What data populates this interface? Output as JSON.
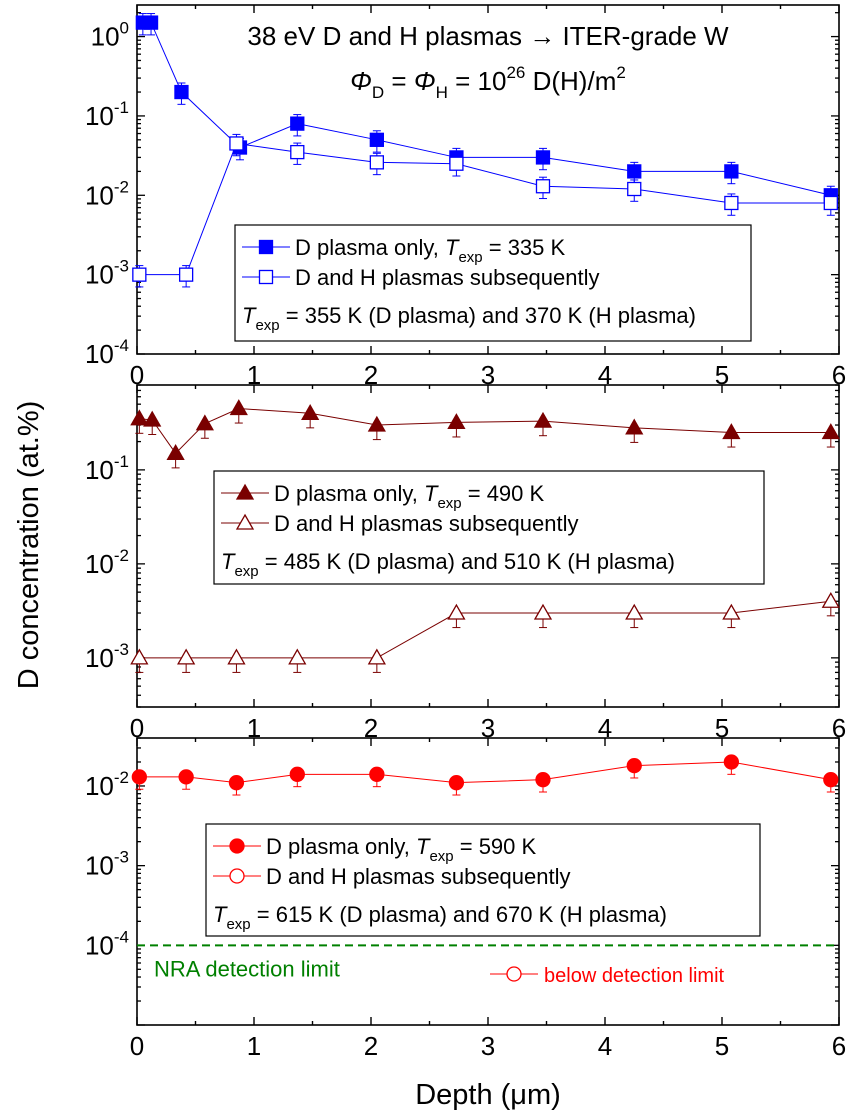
{
  "common": {
    "ylabel": "D concentration (at.%)",
    "xlabel": "Depth (μm)",
    "xlim": [
      0,
      6
    ],
    "xticks": [
      "0",
      "1",
      "2",
      "3",
      "4",
      "5",
      "6"
    ]
  },
  "title": {
    "line1": "38 eV D and H plasmas → ITER-grade W",
    "phi1": "Φ",
    "sub1": "D",
    "mid": " = ",
    "phi2": "Φ",
    "sub2": "H",
    "eq": " = 10",
    "exp": "26",
    "unit": " D(H)/m",
    "sq": "2"
  },
  "chart_data": [
    {
      "type": "scatter",
      "yscale": "log",
      "ylim": [
        0.0001,
        2.5
      ],
      "color": "#0000ff",
      "yticks": [
        {
          "value": 1,
          "base": "10",
          "exp": "0"
        },
        {
          "value": 0.1,
          "base": "10",
          "exp": "-1"
        },
        {
          "value": 0.01,
          "base": "10",
          "exp": "-2"
        },
        {
          "value": 0.001,
          "base": "10",
          "exp": "-3"
        },
        {
          "value": 0.0001,
          "base": "10",
          "exp": "-4"
        }
      ],
      "series": [
        {
          "name": "D plasma only, ",
          "tlabel": "T",
          "tsub": "exp",
          "tval": " = 335 K",
          "marker": "square",
          "filled": true,
          "x": [
            0.05,
            0.12,
            0.38,
            0.88,
            1.37,
            2.05,
            2.73,
            3.47,
            4.25,
            5.08,
            5.93
          ],
          "y": [
            1.5,
            1.5,
            0.2,
            0.04,
            0.08,
            0.05,
            0.03,
            0.03,
            0.02,
            0.02,
            0.01
          ]
        },
        {
          "name": "D and H plasmas subsequently",
          "tlabel": "T",
          "tsub": "exp",
          "tval": " = 355 K (D plasma) and 370 K (H plasma)",
          "marker": "square",
          "filled": false,
          "x": [
            0.02,
            0.42,
            0.85,
            1.37,
            2.05,
            2.73,
            3.47,
            4.25,
            5.08,
            5.93
          ],
          "y": [
            0.001,
            0.001,
            0.045,
            0.035,
            0.026,
            0.025,
            0.013,
            0.012,
            0.008,
            0.008
          ]
        }
      ]
    },
    {
      "type": "scatter",
      "yscale": "log",
      "ylim": [
        0.0003,
        0.8
      ],
      "color": "#7a0000",
      "yticks": [
        {
          "value": 0.1,
          "base": "10",
          "exp": "-1"
        },
        {
          "value": 0.01,
          "base": "10",
          "exp": "-2"
        },
        {
          "value": 0.001,
          "base": "10",
          "exp": "-3"
        }
      ],
      "series": [
        {
          "name": "D plasma only, ",
          "tlabel": "T",
          "tsub": "exp",
          "tval": " = 490 K",
          "marker": "triangle",
          "filled": true,
          "x": [
            0.02,
            0.13,
            0.33,
            0.58,
            0.87,
            1.48,
            2.05,
            2.73,
            3.47,
            4.25,
            5.08,
            5.93
          ],
          "y": [
            0.35,
            0.34,
            0.15,
            0.31,
            0.45,
            0.4,
            0.3,
            0.32,
            0.33,
            0.28,
            0.25,
            0.25
          ]
        },
        {
          "name": "D and H plasmas subsequently",
          "tlabel": "T",
          "tsub": "exp",
          "tval": " = 485 K (D plasma) and 510 K (H plasma)",
          "marker": "triangle",
          "filled": false,
          "x": [
            0.02,
            0.42,
            0.85,
            1.37,
            2.05,
            2.73,
            3.47,
            4.25,
            5.08,
            5.93
          ],
          "y": [
            0.001,
            0.001,
            0.001,
            0.001,
            0.001,
            0.003,
            0.003,
            0.003,
            0.003,
            0.004
          ]
        }
      ]
    },
    {
      "type": "scatter",
      "yscale": "log",
      "ylim": [
        1e-05,
        0.04
      ],
      "color": "#ff0000",
      "yticks": [
        {
          "value": 0.01,
          "base": "10",
          "exp": "-2"
        },
        {
          "value": 0.001,
          "base": "10",
          "exp": "-3"
        },
        {
          "value": 0.0001,
          "base": "10",
          "exp": "-4"
        }
      ],
      "series": [
        {
          "name": "D plasma only, ",
          "tlabel": "T",
          "tsub": "exp",
          "tval": " = 590 K",
          "marker": "circle",
          "filled": true,
          "x": [
            0.02,
            0.42,
            0.85,
            1.37,
            2.05,
            2.73,
            3.47,
            4.25,
            5.08,
            5.93
          ],
          "y": [
            0.013,
            0.013,
            0.011,
            0.014,
            0.014,
            0.011,
            0.012,
            0.018,
            0.02,
            0.012
          ]
        },
        {
          "name": "D and H plasmas subsequently",
          "tlabel": "T",
          "tsub": "exp",
          "tval": " = 615 K (D plasma) and 670 K (H plasma)",
          "marker": "circle",
          "filled": false,
          "x": [],
          "y": []
        }
      ],
      "detection_limit": {
        "value": 0.0001,
        "label": "NRA detection limit",
        "color": "#008000"
      },
      "note": "below detection limit"
    }
  ]
}
